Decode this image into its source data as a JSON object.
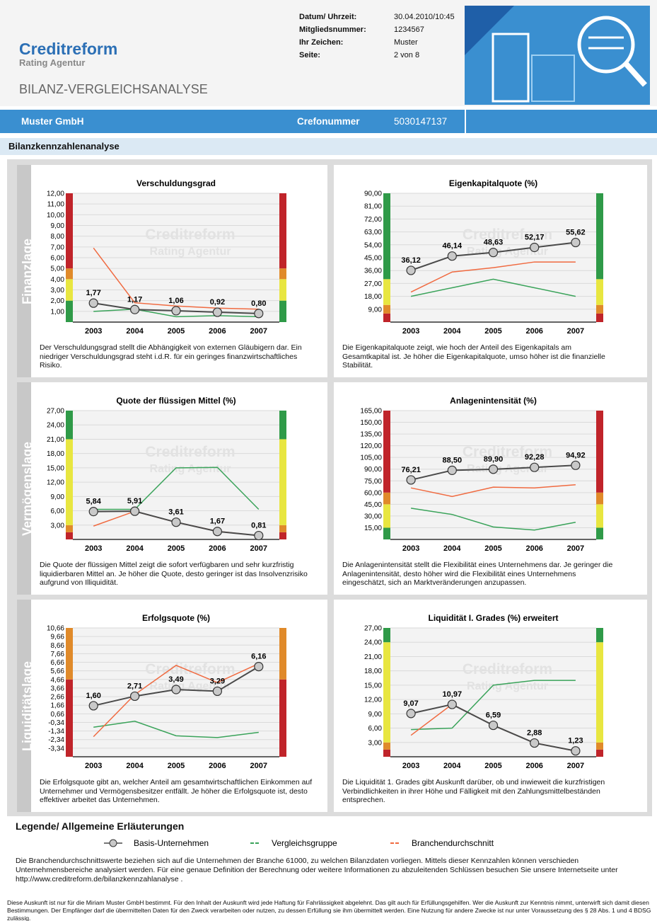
{
  "header": {
    "brand": "Creditreform",
    "sub": "Rating Agentur",
    "doc_title": "BILANZ-VERGLEICHSANALYSE",
    "fields": [
      {
        "label": "Datum/ Uhrzeit:",
        "value": "30.04.2010/10:45"
      },
      {
        "label": "Mitgliedsnummer:",
        "value": "1234567"
      },
      {
        "label": "Ihr Zeichen:",
        "value": "Muster"
      },
      {
        "label": "Seite:",
        "value": "2 von 8"
      }
    ]
  },
  "company_bar": {
    "name": "Muster GmbH",
    "crefo_label": "Crefonummer",
    "crefo": "5030147137"
  },
  "section_title": "Bilanzkennzahlenanalyse",
  "groups": [
    {
      "label": "Finanzlage"
    },
    {
      "label": "Vermögenslage"
    },
    {
      "label": "Liquiditätslage"
    }
  ],
  "watermark": [
    "Creditreform",
    "Rating Agentur"
  ],
  "chart_data": [
    {
      "type": "line",
      "title": "Verschuldungsgrad",
      "categories": [
        "2003",
        "2004",
        "2005",
        "2006",
        "2007"
      ],
      "series": [
        {
          "name": "Basis-Unternehmen",
          "color": "#4a4a4a",
          "values": [
            1.77,
            1.17,
            1.06,
            0.92,
            0.8
          ],
          "value_labels": [
            "1,77",
            "1,17",
            "1,06",
            "0,92",
            "0,80"
          ]
        },
        {
          "name": "Vergleichsgruppe",
          "color": "#3aa35a",
          "values": [
            1.0,
            1.2,
            0.5,
            0.6,
            0.5
          ]
        },
        {
          "name": "Branchendurchschnitt",
          "color": "#f06a40",
          "values": [
            6.9,
            1.8,
            1.5,
            1.3,
            1.2
          ]
        }
      ],
      "ylim": [
        0,
        12
      ],
      "yticks": [
        {
          "value": 1,
          "label": "1,00"
        },
        {
          "value": 2,
          "label": "2,00"
        },
        {
          "value": 3,
          "label": "3,00"
        },
        {
          "value": 4,
          "label": "4,00"
        },
        {
          "value": 5,
          "label": "5,00"
        },
        {
          "value": 6,
          "label": "6,00"
        },
        {
          "value": 7,
          "label": "7,00"
        },
        {
          "value": 8,
          "label": "8,00"
        },
        {
          "value": 9,
          "label": "9,00"
        },
        {
          "value": 10,
          "label": "10,00"
        },
        {
          "value": 11,
          "label": "11,00"
        },
        {
          "value": 12,
          "label": "12,00"
        }
      ],
      "zones": [
        {
          "from": 0,
          "to": 2,
          "color": "#2f9a48"
        },
        {
          "from": 2,
          "to": 4,
          "color": "#e8e640"
        },
        {
          "from": 4,
          "to": 5,
          "color": "#e08a2a"
        },
        {
          "from": 5,
          "to": 12,
          "color": "#c0242a"
        }
      ],
      "description": "Der Verschuldungsgrad stellt die Abhängigkeit von externen Gläubigern dar. Ein niedriger Verschuldungsgrad steht i.d.R. für ein geringes finanzwirtschaftliches Risiko."
    },
    {
      "type": "line",
      "title": "Eigenkapitalquote (%)",
      "categories": [
        "2003",
        "2004",
        "2005",
        "2006",
        "2007"
      ],
      "series": [
        {
          "name": "Basis-Unternehmen",
          "color": "#4a4a4a",
          "values": [
            36.12,
            46.14,
            48.63,
            52.17,
            55.62
          ],
          "value_labels": [
            "36,12",
            "46,14",
            "48,63",
            "52,17",
            "55,62"
          ]
        },
        {
          "name": "Vergleichsgruppe",
          "color": "#3aa35a",
          "values": [
            18,
            24,
            30,
            24,
            18
          ]
        },
        {
          "name": "Branchendurchschnitt",
          "color": "#f06a40",
          "values": [
            21,
            35,
            38,
            42,
            42
          ]
        }
      ],
      "ylim": [
        0,
        90
      ],
      "yticks": [
        {
          "value": 9,
          "label": "9,00"
        },
        {
          "value": 18,
          "label": "18,00"
        },
        {
          "value": 27,
          "label": "27,00"
        },
        {
          "value": 36,
          "label": "36,00"
        },
        {
          "value": 45,
          "label": "45,00"
        },
        {
          "value": 54,
          "label": "54,00"
        },
        {
          "value": 63,
          "label": "63,00"
        },
        {
          "value": 72,
          "label": "72,00"
        },
        {
          "value": 81,
          "label": "81,00"
        },
        {
          "value": 90,
          "label": "90,00"
        }
      ],
      "zones": [
        {
          "from": 0,
          "to": 6,
          "color": "#c0242a"
        },
        {
          "from": 6,
          "to": 12,
          "color": "#e08a2a"
        },
        {
          "from": 12,
          "to": 30,
          "color": "#e8e640"
        },
        {
          "from": 30,
          "to": 90,
          "color": "#2f9a48"
        }
      ],
      "description": "Die Eigenkapitalquote zeigt, wie hoch der Anteil des Eigenkapitals am Gesamtkapital ist. Je höher die Eigenkapitalquote, umso höher ist die finanzielle Stabilität."
    },
    {
      "type": "line",
      "title": "Quote der flüssigen Mittel (%)",
      "categories": [
        "2003",
        "2004",
        "2005",
        "2006",
        "2007"
      ],
      "series": [
        {
          "name": "Basis-Unternehmen",
          "color": "#4a4a4a",
          "values": [
            5.84,
            5.91,
            3.61,
            1.67,
            0.81
          ],
          "value_labels": [
            "5,84",
            "5,91",
            "3,61",
            "1,67",
            "0,81"
          ]
        },
        {
          "name": "Vergleichsgruppe",
          "color": "#3aa35a",
          "values": [
            6.3,
            6.3,
            15,
            15.1,
            6.3
          ]
        },
        {
          "name": "Branchendurchschnitt",
          "color": "#f06a40",
          "values": [
            2.8,
            5.9,
            3.6,
            1.7,
            0.8
          ]
        }
      ],
      "ylim": [
        0,
        27
      ],
      "yticks": [
        {
          "value": 3,
          "label": "3,00"
        },
        {
          "value": 6,
          "label": "6,00"
        },
        {
          "value": 9,
          "label": "9,00"
        },
        {
          "value": 12,
          "label": "12,00"
        },
        {
          "value": 15,
          "label": "15,00"
        },
        {
          "value": 18,
          "label": "18,00"
        },
        {
          "value": 21,
          "label": "21,00"
        },
        {
          "value": 24,
          "label": "24,00"
        },
        {
          "value": 27,
          "label": "27,00"
        }
      ],
      "zones": [
        {
          "from": 0,
          "to": 1.5,
          "color": "#c0242a"
        },
        {
          "from": 1.5,
          "to": 3,
          "color": "#e08a2a"
        },
        {
          "from": 3,
          "to": 21,
          "color": "#e8e640"
        },
        {
          "from": 21,
          "to": 27,
          "color": "#2f9a48"
        }
      ],
      "description": "Die Quote der flüssigen Mittel zeigt die sofort verfügbaren und sehr kurzfristig liquidierbaren Mittel an. Je höher die Quote, desto geringer ist das Insolvenzrisiko aufgrund von Illiquidität."
    },
    {
      "type": "line",
      "title": "Anlagenintensität (%)",
      "categories": [
        "2003",
        "2004",
        "2005",
        "2006",
        "2007"
      ],
      "series": [
        {
          "name": "Basis-Unternehmen",
          "color": "#4a4a4a",
          "values": [
            76.21,
            88.5,
            89.9,
            92.28,
            94.92
          ],
          "value_labels": [
            "76,21",
            "88,50",
            "89,90",
            "92,28",
            "94,92"
          ]
        },
        {
          "name": "Vergleichsgruppe",
          "color": "#3aa35a",
          "values": [
            40,
            32,
            16,
            12,
            22
          ]
        },
        {
          "name": "Branchendurchschnitt",
          "color": "#f06a40",
          "values": [
            66,
            55,
            67,
            66,
            70
          ]
        }
      ],
      "ylim": [
        0,
        165
      ],
      "yticks": [
        {
          "value": 15,
          "label": "15,00"
        },
        {
          "value": 30,
          "label": "30,00"
        },
        {
          "value": 45,
          "label": "45,00"
        },
        {
          "value": 60,
          "label": "60,00"
        },
        {
          "value": 75,
          "label": "75,00"
        },
        {
          "value": 90,
          "label": "90,00"
        },
        {
          "value": 105,
          "label": "105,00"
        },
        {
          "value": 120,
          "label": "120,00"
        },
        {
          "value": 135,
          "label": "135,00"
        },
        {
          "value": 150,
          "label": "150,00"
        },
        {
          "value": 165,
          "label": "165,00"
        }
      ],
      "zones": [
        {
          "from": 0,
          "to": 15,
          "color": "#2f9a48"
        },
        {
          "from": 15,
          "to": 45,
          "color": "#e8e640"
        },
        {
          "from": 45,
          "to": 60,
          "color": "#e08a2a"
        },
        {
          "from": 60,
          "to": 165,
          "color": "#c0242a"
        }
      ],
      "description": "Die Anlagenintensität stellt die Flexibilität eines Unternehmens dar. Je geringer die Anlagenintensität, desto höher wird die Flexibilität eines Unternehmens eingeschätzt, sich an Marktveränderungen anzupassen."
    },
    {
      "type": "line",
      "title": "Erfolgsquote (%)",
      "categories": [
        "2003",
        "2004",
        "2005",
        "2006",
        "2007"
      ],
      "series": [
        {
          "name": "Basis-Unternehmen",
          "color": "#4a4a4a",
          "values": [
            1.6,
            2.71,
            3.49,
            3.29,
            6.16
          ],
          "value_labels": [
            "1,60",
            "2,71",
            "3,49",
            "3,29",
            "6,16"
          ]
        },
        {
          "name": "Vergleichsgruppe",
          "color": "#3aa35a",
          "values": [
            -0.9,
            -0.2,
            -1.9,
            -2.1,
            -1.5
          ]
        },
        {
          "name": "Branchendurchschnitt",
          "color": "#f06a40",
          "values": [
            -2.0,
            2.9,
            6.3,
            4.3,
            6.5
          ]
        }
      ],
      "ylim": [
        -4.34,
        10.66
      ],
      "yticks": [
        {
          "value": -3.34,
          "label": "-3,34"
        },
        {
          "value": -2.34,
          "label": "-2,34"
        },
        {
          "value": -1.34,
          "label": "-1,34"
        },
        {
          "value": -0.34,
          "label": "-0,34"
        },
        {
          "value": 0.66,
          "label": "0,66"
        },
        {
          "value": 1.66,
          "label": "1,66"
        },
        {
          "value": 2.66,
          "label": "2,66"
        },
        {
          "value": 3.66,
          "label": "3,66"
        },
        {
          "value": 4.66,
          "label": "4,66"
        },
        {
          "value": 5.66,
          "label": "5,66"
        },
        {
          "value": 6.66,
          "label": "6,66"
        },
        {
          "value": 7.66,
          "label": "7,66"
        },
        {
          "value": 8.66,
          "label": "8,66"
        },
        {
          "value": 9.66,
          "label": "9,66"
        },
        {
          "value": 10.66,
          "label": "10,66"
        }
      ],
      "zones": [
        {
          "from": -4.34,
          "to": 4.66,
          "color": "#c0242a"
        },
        {
          "from": 4.66,
          "to": 10.66,
          "color": "#e08a2a"
        }
      ],
      "description": "Die Erfolgsquote gibt an, welcher Anteil am gesamtwirtschaftlichen Einkommen auf Unternehmer und Vermögensbesitzer entfällt. Je höher die Erfolgsquote ist, desto effektiver arbeitet das Unternehmen."
    },
    {
      "type": "line",
      "title": "Liquidität I. Grades (%) erweitert",
      "categories": [
        "2003",
        "2004",
        "2005",
        "2006",
        "2007"
      ],
      "series": [
        {
          "name": "Basis-Unternehmen",
          "color": "#4a4a4a",
          "values": [
            9.07,
            10.97,
            6.59,
            2.88,
            1.23
          ],
          "value_labels": [
            "9,07",
            "10,97",
            "6,59",
            "2,88",
            "1,23"
          ]
        },
        {
          "name": "Vergleichsgruppe",
          "color": "#3aa35a",
          "values": [
            5.7,
            6,
            15,
            16,
            16
          ]
        },
        {
          "name": "Branchendurchschnitt",
          "color": "#f06a40",
          "values": [
            4.5,
            11,
            6.6,
            2.9,
            1.2
          ]
        }
      ],
      "ylim": [
        0,
        27
      ],
      "yticks": [
        {
          "value": 3,
          "label": "3,00"
        },
        {
          "value": 6,
          "label": "6,00"
        },
        {
          "value": 9,
          "label": "9,00"
        },
        {
          "value": 12,
          "label": "12,00"
        },
        {
          "value": 15,
          "label": "15,00"
        },
        {
          "value": 18,
          "label": "18,00"
        },
        {
          "value": 21,
          "label": "21,00"
        },
        {
          "value": 24,
          "label": "24,00"
        },
        {
          "value": 27,
          "label": "27,00"
        }
      ],
      "zones": [
        {
          "from": 0,
          "to": 1.5,
          "color": "#c0242a"
        },
        {
          "from": 1.5,
          "to": 3,
          "color": "#e08a2a"
        },
        {
          "from": 3,
          "to": 24,
          "color": "#e8e640"
        },
        {
          "from": 24,
          "to": 27,
          "color": "#2f9a48"
        }
      ],
      "description": "Die Liquidität 1. Grades gibt Auskunft darüber, ob und inwieweit die kurzfristigen Verbindlichkeiten in ihrer Höhe und Fälligkeit mit den Zahlungsmittelbeständen entsprechen."
    }
  ],
  "legend": {
    "title": "Legende/ Allgemeine Erläuterungen",
    "text": "Die Branchendurchschnittswerte beziehen sich auf die Unternehmen der Branche 61000, zu welchen Bilanzdaten vorliegen. Mittels dieser Kennzahlen können verschieden Unternehmensbereiche analysiert werden. Für eine genaue Definition der Berechnung oder weitere Informationen zu abzuleitenden Schlüssen besuchen Sie unsere Internetseite unter http://www.creditreform.de/bilanzkennzahlanalyse ."
  },
  "footer": "Diese Auskunft ist nur für die Miriam Muster GmbH bestimmt. Für den Inhalt der Auskunft wird jede Haftung für Fahrlässigkeit abgelehnt. Das gilt auch für Erfüllungsgehilfen. Wer die Auskunft zur Kenntnis nimmt, unterwirft sich damit diesen Bestimmungen. Der Empfänger darf die übermittelten Daten für den Zweck verarbeiten oder nutzen, zu dessen Erfüllung sie ihm übermittelt werden. Eine Nutzung für andere Zwecke ist nur unter Voraussetzung des § 28 Abs. 1 und 4 BDSG zulässig."
}
